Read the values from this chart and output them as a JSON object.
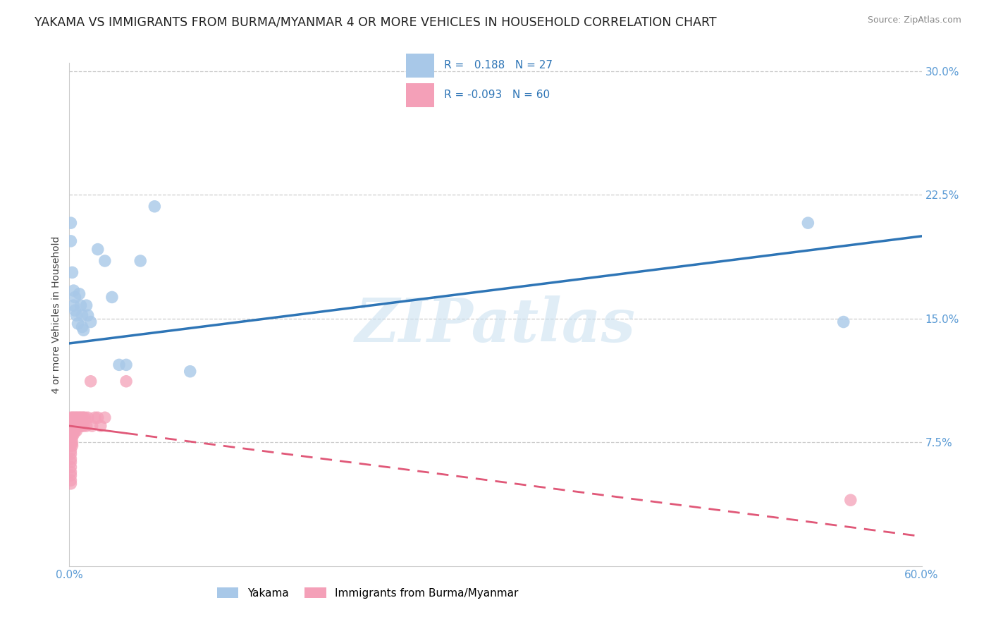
{
  "title": "YAKAMA VS IMMIGRANTS FROM BURMA/MYANMAR 4 OR MORE VEHICLES IN HOUSEHOLD CORRELATION CHART",
  "source": "Source: ZipAtlas.com",
  "ylabel": "4 or more Vehicles in Household",
  "xlim": [
    0.0,
    0.6
  ],
  "ylim": [
    0.0,
    0.305
  ],
  "xticks": [
    0.0,
    0.6
  ],
  "xticklabels": [
    "0.0%",
    "60.0%"
  ],
  "yticks": [
    0.075,
    0.15,
    0.225,
    0.3
  ],
  "yticklabels": [
    "7.5%",
    "15.0%",
    "22.5%",
    "30.0%"
  ],
  "series1_name": "Yakama",
  "series1_color": "#a8c8e8",
  "series1_line_color": "#2e75b6",
  "series1_R": 0.188,
  "series1_N": 27,
  "series2_name": "Immigrants from Burma/Myanmar",
  "series2_color": "#f4a0b8",
  "series2_line_color": "#e05878",
  "series2_R": -0.093,
  "series2_N": 60,
  "background_color": "#ffffff",
  "title_fontsize": 12.5,
  "source_fontsize": 9,
  "label_fontsize": 10,
  "tick_fontsize": 11,
  "watermark_text": "ZIPatlas",
  "yakama_x": [
    0.001,
    0.001,
    0.002,
    0.003,
    0.003,
    0.004,
    0.004,
    0.005,
    0.006,
    0.007,
    0.008,
    0.009,
    0.009,
    0.01,
    0.012,
    0.013,
    0.015,
    0.02,
    0.025,
    0.03,
    0.035,
    0.04,
    0.05,
    0.06,
    0.085,
    0.52,
    0.545
  ],
  "yakama_y": [
    0.208,
    0.197,
    0.178,
    0.167,
    0.158,
    0.163,
    0.155,
    0.152,
    0.147,
    0.165,
    0.158,
    0.152,
    0.145,
    0.143,
    0.158,
    0.152,
    0.148,
    0.192,
    0.185,
    0.163,
    0.122,
    0.122,
    0.185,
    0.218,
    0.118,
    0.208,
    0.148
  ],
  "burma_x": [
    0.001,
    0.001,
    0.001,
    0.001,
    0.001,
    0.001,
    0.001,
    0.001,
    0.001,
    0.001,
    0.001,
    0.001,
    0.001,
    0.001,
    0.001,
    0.001,
    0.001,
    0.002,
    0.002,
    0.002,
    0.002,
    0.002,
    0.002,
    0.002,
    0.002,
    0.003,
    0.003,
    0.003,
    0.003,
    0.003,
    0.004,
    0.004,
    0.004,
    0.004,
    0.005,
    0.005,
    0.005,
    0.005,
    0.006,
    0.006,
    0.006,
    0.007,
    0.007,
    0.008,
    0.008,
    0.009,
    0.009,
    0.01,
    0.01,
    0.011,
    0.012,
    0.013,
    0.015,
    0.016,
    0.018,
    0.02,
    0.022,
    0.025,
    0.04,
    0.55
  ],
  "burma_y": [
    0.09,
    0.087,
    0.085,
    0.082,
    0.08,
    0.078,
    0.075,
    0.073,
    0.07,
    0.068,
    0.065,
    0.063,
    0.06,
    0.057,
    0.055,
    0.052,
    0.05,
    0.09,
    0.087,
    0.085,
    0.082,
    0.08,
    0.078,
    0.075,
    0.073,
    0.09,
    0.087,
    0.085,
    0.082,
    0.08,
    0.09,
    0.087,
    0.085,
    0.082,
    0.09,
    0.087,
    0.085,
    0.082,
    0.09,
    0.087,
    0.085,
    0.09,
    0.085,
    0.09,
    0.085,
    0.09,
    0.085,
    0.09,
    0.085,
    0.09,
    0.085,
    0.09,
    0.112,
    0.085,
    0.09,
    0.09,
    0.085,
    0.09,
    0.112,
    0.04
  ]
}
